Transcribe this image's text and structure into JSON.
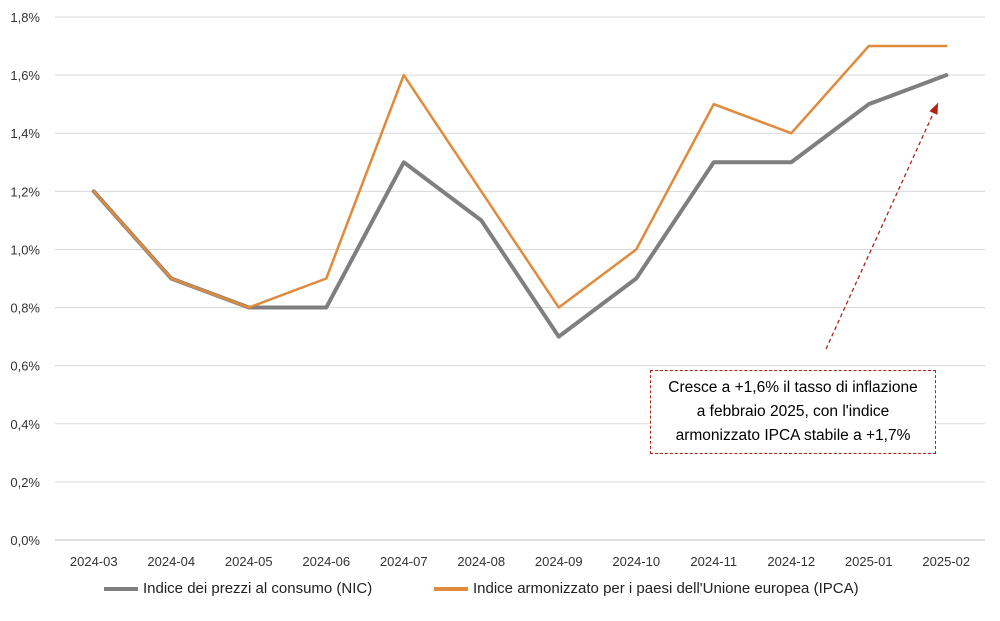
{
  "colors": {
    "nic": "#7f7f7f",
    "ipca": "#e08a3c",
    "annotation": "#b02418",
    "grid": "#d9d9d9"
  },
  "chart_data": {
    "type": "line",
    "title": "",
    "xlabel": "",
    "ylabel": "",
    "categories": [
      "2024-03",
      "2024-04",
      "2024-05",
      "2024-06",
      "2024-07",
      "2024-08",
      "2024-09",
      "2024-10",
      "2024-11",
      "2024-12",
      "2025-01",
      "2025-02"
    ],
    "y_ticks": [
      "0,0%",
      "0,2%",
      "0,4%",
      "0,6%",
      "0,8%",
      "1,0%",
      "1,2%",
      "1,4%",
      "1,6%",
      "1,8%"
    ],
    "ylim": [
      0,
      1.8
    ],
    "grid": true,
    "legend_position": "bottom",
    "series": [
      {
        "name": "Indice  dei prezzi al consumo (NIC)",
        "values": [
          1.2,
          0.9,
          0.8,
          0.8,
          1.3,
          1.1,
          0.7,
          0.9,
          1.3,
          1.3,
          1.5,
          1.6
        ]
      },
      {
        "name": "Indice  armonizzato per i paesi dell'Unione europea (IPCA)",
        "values": [
          1.2,
          0.9,
          0.8,
          0.9,
          1.6,
          1.2,
          0.8,
          1.0,
          1.5,
          1.4,
          1.7,
          1.7
        ]
      }
    ],
    "annotation": "Cresce a +1,6% il tasso di inflazione\na febbraio 2025, con l'indice\narmonizzato IPCA stabile a +1,7%"
  }
}
